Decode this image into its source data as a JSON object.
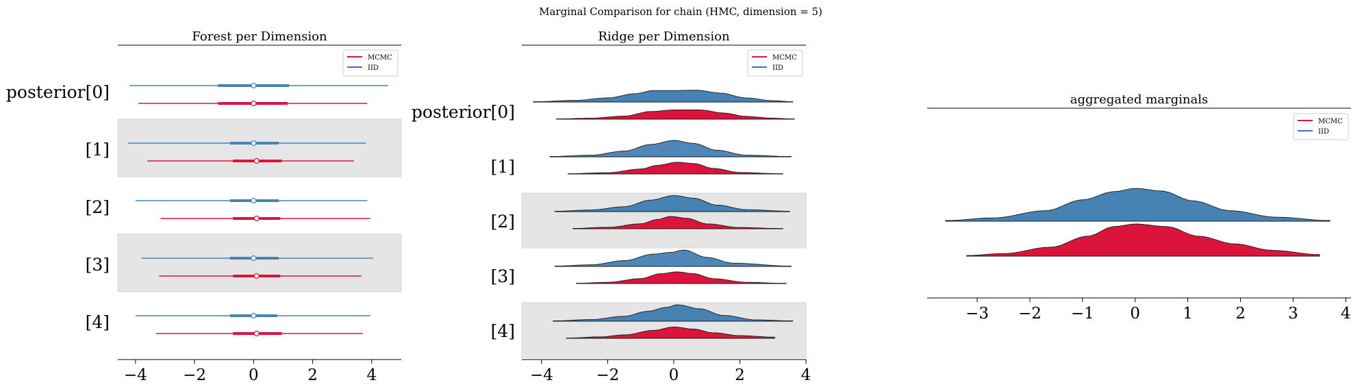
{
  "figure": {
    "suptitle": "Marginal Comparison for chain (HMC, dimension = 5)"
  },
  "colors": {
    "mcmc": "#dc143c",
    "iid": "#4682b4",
    "band": "#e5e5e5"
  },
  "chart_data": [
    {
      "type": "forest",
      "title": "Forest per Dimension",
      "categories": [
        "posterior[0]",
        "[1]",
        "[2]",
        "[3]",
        "[4]"
      ],
      "xlim": [
        -4.6,
        5.0
      ],
      "xticks": [
        -4,
        -2,
        0,
        2,
        4
      ],
      "xticklabels": [
        "−4",
        "−2",
        "0",
        "2",
        "4"
      ],
      "legend": {
        "position": "top-right",
        "entries": [
          "MCMC",
          "IID"
        ]
      },
      "series": [
        {
          "name": "MCMC",
          "color": "#dc143c",
          "hdi": [
            [
              -3.9,
              3.85
            ],
            [
              -3.6,
              3.4
            ],
            [
              -3.15,
              3.95
            ],
            [
              -3.2,
              3.65
            ],
            [
              -3.3,
              3.7
            ]
          ],
          "iqr": [
            [
              -1.2,
              1.15
            ],
            [
              -0.7,
              0.95
            ],
            [
              -0.7,
              0.9
            ],
            [
              -0.7,
              0.9
            ],
            [
              -0.7,
              0.95
            ]
          ],
          "center": [
            0.0,
            0.1,
            0.1,
            0.1,
            0.1
          ]
        },
        {
          "name": "IID",
          "color": "#4682b4",
          "hdi": [
            [
              -4.2,
              4.55
            ],
            [
              -4.25,
              3.8
            ],
            [
              -4.0,
              3.85
            ],
            [
              -3.8,
              4.05
            ],
            [
              -4.0,
              3.95
            ]
          ],
          "iqr": [
            [
              -1.2,
              1.2
            ],
            [
              -0.8,
              0.85
            ],
            [
              -0.8,
              0.85
            ],
            [
              -0.8,
              0.85
            ],
            [
              -0.8,
              0.8
            ]
          ],
          "center": [
            0.0,
            0.0,
            0.0,
            0.0,
            0.0
          ]
        }
      ]
    },
    {
      "type": "ridgeplot",
      "title": "Ridge per Dimension",
      "categories": [
        "posterior[0]",
        "[1]",
        "[2]",
        "[3]",
        "[4]"
      ],
      "xlim": [
        -4.6,
        4.0
      ],
      "xticks": [
        -4,
        -2,
        0,
        2,
        4
      ],
      "xticklabels": [
        "−4",
        "−2",
        "0",
        "2",
        "4"
      ],
      "legend": {
        "position": "top-right",
        "entries": [
          "MCMC",
          "IID"
        ]
      },
      "series": [
        {
          "name": "MCMC",
          "color": "#dc143c",
          "ranges": [
            [
              -3.55,
              3.65
            ],
            [
              -3.2,
              3.3
            ],
            [
              -3.05,
              3.3
            ],
            [
              -2.95,
              3.4
            ],
            [
              -3.25,
              3.05
            ]
          ],
          "density": [
            [
              [
                -3.5,
                0.02
              ],
              [
                -2.5,
                0.08
              ],
              [
                -1.5,
                0.25
              ],
              [
                -0.7,
                0.62
              ],
              [
                0.0,
                0.75
              ],
              [
                0.8,
                0.75
              ],
              [
                1.5,
                0.5
              ],
              [
                2.2,
                0.22
              ],
              [
                3.0,
                0.08
              ],
              [
                3.6,
                0.02
              ]
            ],
            [
              [
                -3.2,
                0.02
              ],
              [
                -2.0,
                0.1
              ],
              [
                -1.0,
                0.4
              ],
              [
                -0.5,
                0.7
              ],
              [
                0.1,
                0.95
              ],
              [
                0.6,
                0.85
              ],
              [
                1.2,
                0.45
              ],
              [
                2.0,
                0.12
              ],
              [
                3.2,
                0.02
              ]
            ],
            [
              [
                -3.0,
                0.03
              ],
              [
                -2.0,
                0.12
              ],
              [
                -1.0,
                0.4
              ],
              [
                -0.5,
                0.75
              ],
              [
                -0.1,
                1.0
              ],
              [
                0.4,
                0.85
              ],
              [
                1.0,
                0.4
              ],
              [
                2.0,
                0.1
              ],
              [
                3.2,
                0.02
              ]
            ],
            [
              [
                -2.9,
                0.02
              ],
              [
                -2.0,
                0.1
              ],
              [
                -1.0,
                0.4
              ],
              [
                -0.4,
                0.8
              ],
              [
                0.1,
                0.95
              ],
              [
                0.6,
                0.8
              ],
              [
                1.2,
                0.4
              ],
              [
                2.2,
                0.1
              ],
              [
                3.3,
                0.02
              ]
            ],
            [
              [
                -3.2,
                0.02
              ],
              [
                -2.2,
                0.12
              ],
              [
                -1.5,
                0.28
              ],
              [
                -0.6,
                0.65
              ],
              [
                0.0,
                0.92
              ],
              [
                0.6,
                0.75
              ],
              [
                1.2,
                0.45
              ],
              [
                2.0,
                0.22
              ],
              [
                3.0,
                0.1
              ]
            ]
          ]
        },
        {
          "name": "IID",
          "color": "#4682b4",
          "ranges": [
            [
              -4.25,
              3.6
            ],
            [
              -3.75,
              3.55
            ],
            [
              -3.6,
              3.5
            ],
            [
              -3.6,
              3.55
            ],
            [
              -3.65,
              3.6
            ]
          ],
          "density": [
            [
              [
                -4.2,
                0.02
              ],
              [
                -3.0,
                0.1
              ],
              [
                -2.0,
                0.25
              ],
              [
                -1.2,
                0.5
              ],
              [
                -0.6,
                0.7
              ],
              [
                0.0,
                0.7
              ],
              [
                0.7,
                0.72
              ],
              [
                1.4,
                0.55
              ],
              [
                2.2,
                0.25
              ],
              [
                3.0,
                0.08
              ],
              [
                3.6,
                0.02
              ]
            ],
            [
              [
                -3.7,
                0.02
              ],
              [
                -2.5,
                0.1
              ],
              [
                -1.5,
                0.35
              ],
              [
                -0.7,
                0.75
              ],
              [
                0.0,
                1.0
              ],
              [
                0.6,
                0.82
              ],
              [
                1.3,
                0.4
              ],
              [
                2.2,
                0.1
              ],
              [
                3.5,
                0.02
              ]
            ],
            [
              [
                -3.6,
                0.02
              ],
              [
                -2.5,
                0.1
              ],
              [
                -1.5,
                0.3
              ],
              [
                -0.7,
                0.7
              ],
              [
                0.0,
                0.98
              ],
              [
                0.6,
                0.82
              ],
              [
                1.3,
                0.4
              ],
              [
                2.2,
                0.12
              ],
              [
                3.5,
                0.02
              ]
            ],
            [
              [
                -3.6,
                0.02
              ],
              [
                -2.5,
                0.1
              ],
              [
                -1.5,
                0.35
              ],
              [
                -0.6,
                0.75
              ],
              [
                -0.1,
                0.85
              ],
              [
                0.3,
                1.0
              ],
              [
                1.0,
                0.55
              ],
              [
                1.8,
                0.2
              ],
              [
                3.5,
                0.02
              ]
            ],
            [
              [
                -3.6,
                0.02
              ],
              [
                -2.5,
                0.1
              ],
              [
                -1.5,
                0.3
              ],
              [
                -0.8,
                0.6
              ],
              [
                -0.2,
                0.85
              ],
              [
                0.1,
                1.0
              ],
              [
                0.8,
                0.75
              ],
              [
                1.5,
                0.35
              ],
              [
                2.5,
                0.08
              ],
              [
                3.6,
                0.02
              ]
            ]
          ]
        }
      ]
    },
    {
      "type": "ridgeplot",
      "title": "aggregated marginals",
      "categories": [],
      "xlim": [
        -3.95,
        4.1
      ],
      "xticks": [
        -3,
        -2,
        -1,
        0,
        1,
        2,
        3,
        4
      ],
      "xticklabels": [
        "−3",
        "−2",
        "−1",
        "0",
        "1",
        "2",
        "3",
        "4"
      ],
      "legend": {
        "position": "top-right",
        "entries": [
          "MCMC",
          "IID"
        ]
      },
      "series": [
        {
          "name": "MCMC",
          "color": "#dc143c",
          "ranges": [
            [
              -3.2,
              3.5
            ]
          ],
          "density": [
            [
              [
                -3.2,
                0.02
              ],
              [
                -2.5,
                0.08
              ],
              [
                -1.6,
                0.28
              ],
              [
                -0.9,
                0.62
              ],
              [
                -0.4,
                0.92
              ],
              [
                0.0,
                1.0
              ],
              [
                0.6,
                0.92
              ],
              [
                1.2,
                0.62
              ],
              [
                1.9,
                0.38
              ],
              [
                2.6,
                0.18
              ],
              [
                3.5,
                0.05
              ]
            ]
          ]
        },
        {
          "name": "IID",
          "color": "#4682b4",
          "ranges": [
            [
              -3.6,
              3.7
            ]
          ],
          "density": [
            [
              [
                -3.6,
                0.02
              ],
              [
                -2.7,
                0.1
              ],
              [
                -1.7,
                0.32
              ],
              [
                -1.0,
                0.65
              ],
              [
                -0.4,
                0.9
              ],
              [
                0.0,
                1.0
              ],
              [
                0.5,
                0.92
              ],
              [
                1.1,
                0.62
              ],
              [
                1.8,
                0.32
              ],
              [
                2.7,
                0.12
              ],
              [
                3.7,
                0.02
              ]
            ]
          ]
        }
      ]
    }
  ]
}
